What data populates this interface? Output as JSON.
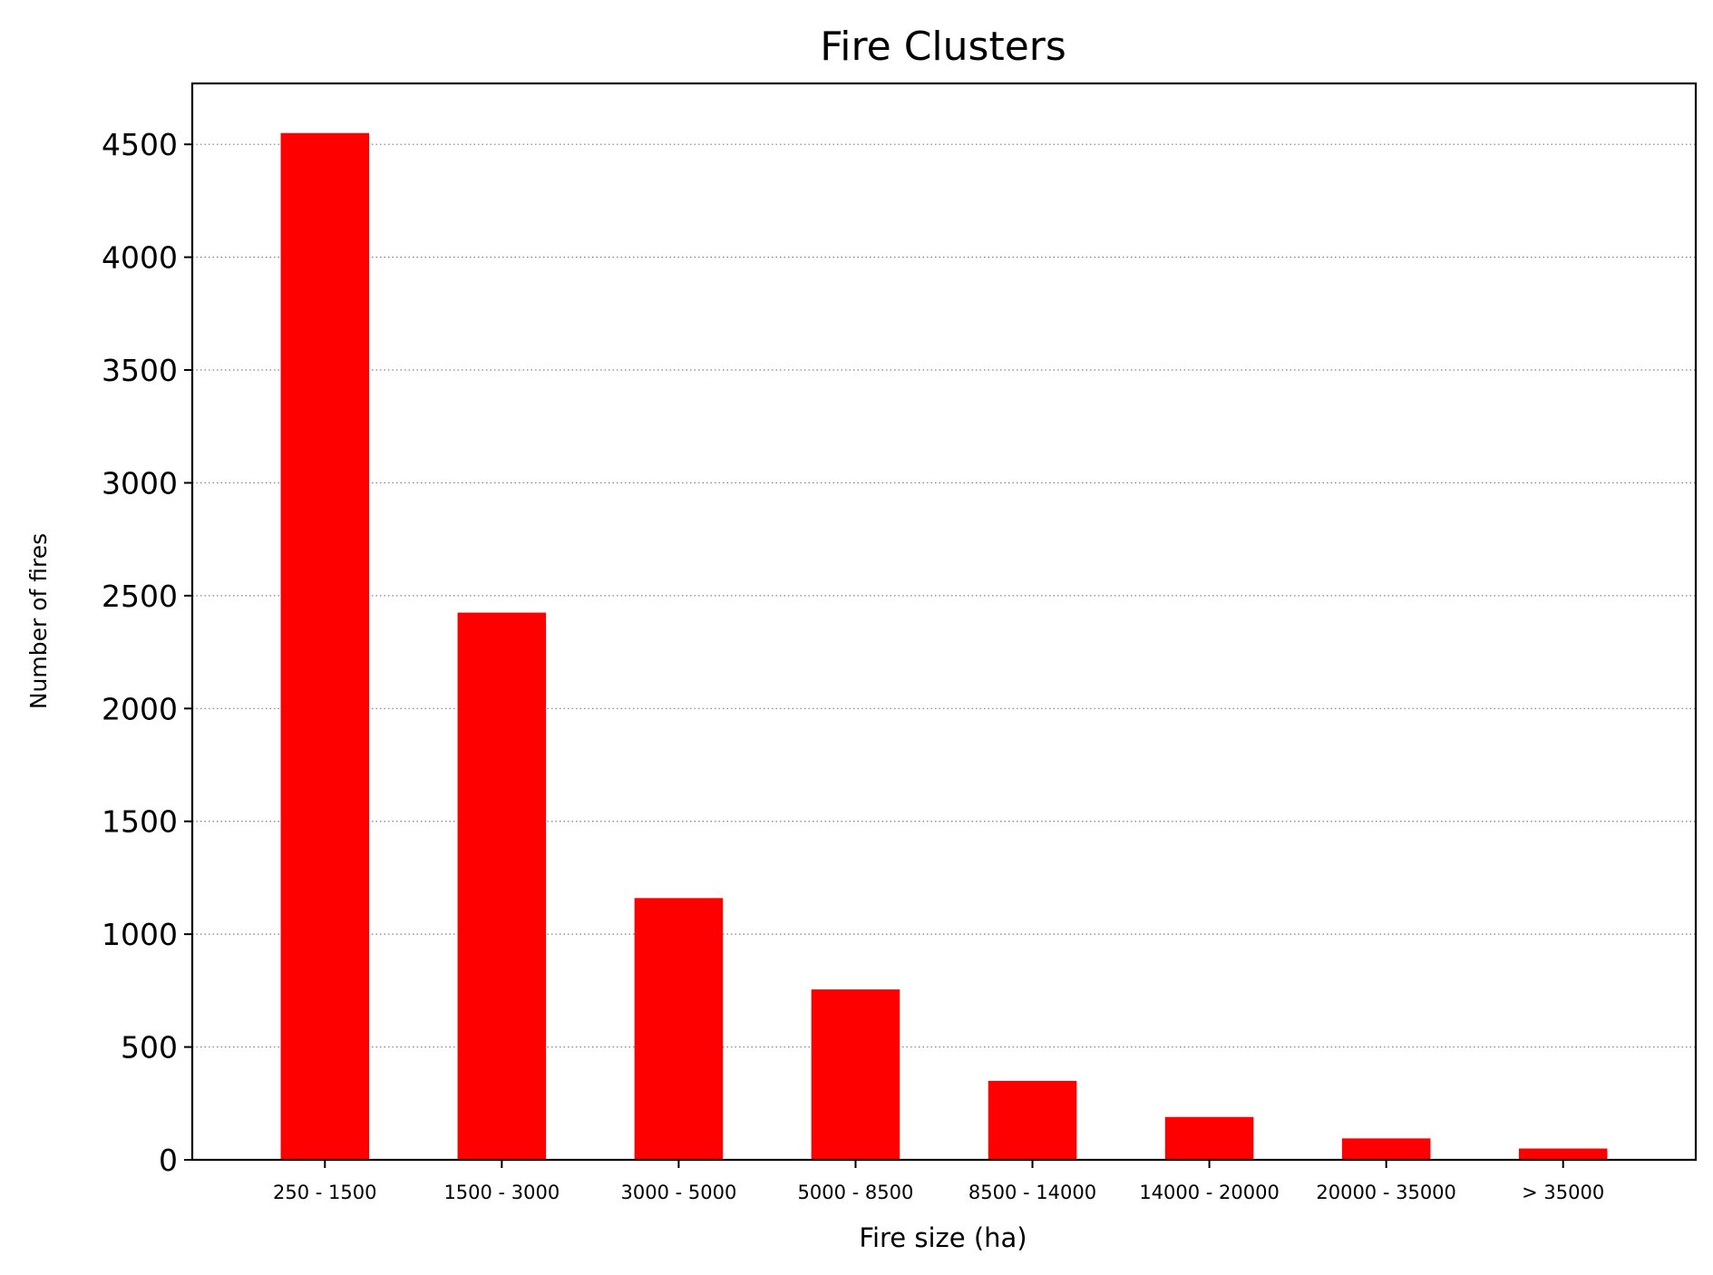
{
  "chart_data": {
    "type": "bar",
    "title": "Fire Clusters",
    "xlabel": "Fire size (ha)",
    "ylabel": "Number of fires",
    "categories": [
      "250 - 1500",
      "1500 - 3000",
      "3000 - 5000",
      "5000 - 8500",
      "8500 - 14000",
      "14000 - 20000",
      "20000 - 35000",
      "> 35000"
    ],
    "values": [
      4550,
      2425,
      1160,
      755,
      350,
      190,
      95,
      50
    ],
    "ylim": [
      0,
      4770
    ],
    "yticks": [
      0,
      500,
      1000,
      1500,
      2000,
      2500,
      3000,
      3500,
      4000,
      4500
    ],
    "grid": "y-dotted",
    "bar_color": "#ff0000"
  }
}
